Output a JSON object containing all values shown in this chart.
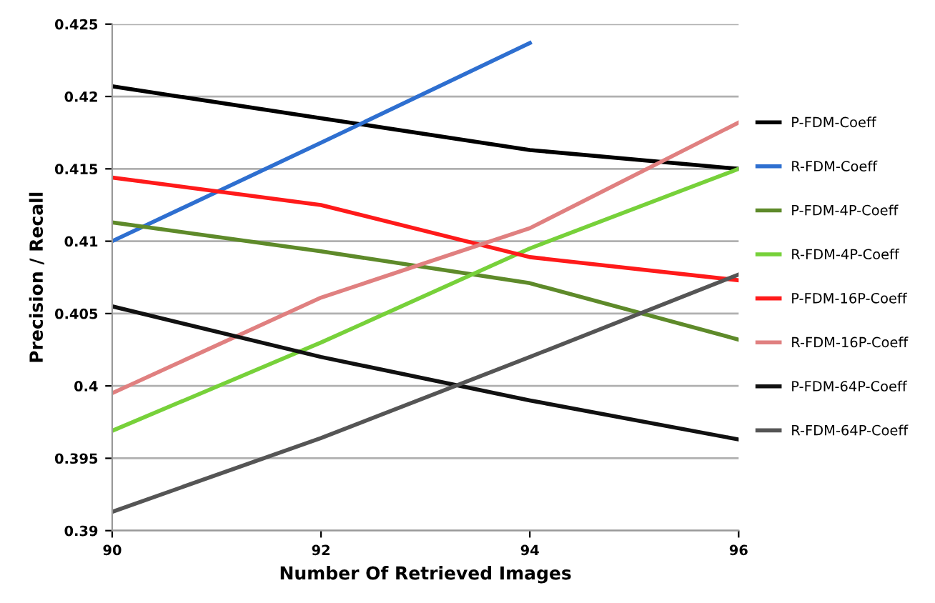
{
  "chart_data": {
    "type": "line",
    "xlabel": "Number Of Retrieved Images",
    "ylabel": "Precision / Recall",
    "categories": [
      "90",
      "92",
      "94",
      "96"
    ],
    "ylim": [
      0.39,
      0.425
    ],
    "yticks": [
      {
        "value": 0.39,
        "label": "0.39"
      },
      {
        "value": 0.395,
        "label": "0.395"
      },
      {
        "value": 0.4,
        "label": "0.4"
      },
      {
        "value": 0.405,
        "label": "0.405"
      },
      {
        "value": 0.41,
        "label": "0.41"
      },
      {
        "value": 0.415,
        "label": "0.415"
      },
      {
        "value": 0.42,
        "label": "0.42"
      },
      {
        "value": 0.425,
        "label": "0.425"
      }
    ],
    "grid": "y",
    "legend": "right",
    "marker": "none",
    "series": [
      {
        "name": "P-FDM-Coeff",
        "color": "#000000",
        "values": [
          0.4207,
          0.4185,
          0.4163,
          0.415
        ]
      },
      {
        "name": "R-FDM-Coeff",
        "color": "#2e6fd0",
        "values": [
          0.41,
          0.4168,
          0.4237,
          null
        ]
      },
      {
        "name": "P-FDM-4P-Coeff",
        "color": "#5e8a2a",
        "values": [
          0.4113,
          0.4093,
          0.4071,
          0.4032
        ]
      },
      {
        "name": "R-FDM-4P-Coeff",
        "color": "#77d13a",
        "values": [
          0.3969,
          0.403,
          0.4095,
          0.415
        ]
      },
      {
        "name": "P-FDM-16P-Coeff",
        "color": "#ff1a1a",
        "values": [
          0.4144,
          0.4125,
          0.4089,
          0.4073
        ]
      },
      {
        "name": "R-FDM-16P-Coeff",
        "color": "#e08080",
        "values": [
          0.3995,
          0.4061,
          0.4109,
          0.4182
        ]
      },
      {
        "name": "P-FDM-64P-Coeff",
        "color": "#111111",
        "values": [
          0.4055,
          0.402,
          0.399,
          0.3963
        ]
      },
      {
        "name": "R-FDM-64P-Coeff",
        "color": "#555555",
        "values": [
          0.3913,
          0.3964,
          0.402,
          0.4077
        ]
      }
    ]
  }
}
